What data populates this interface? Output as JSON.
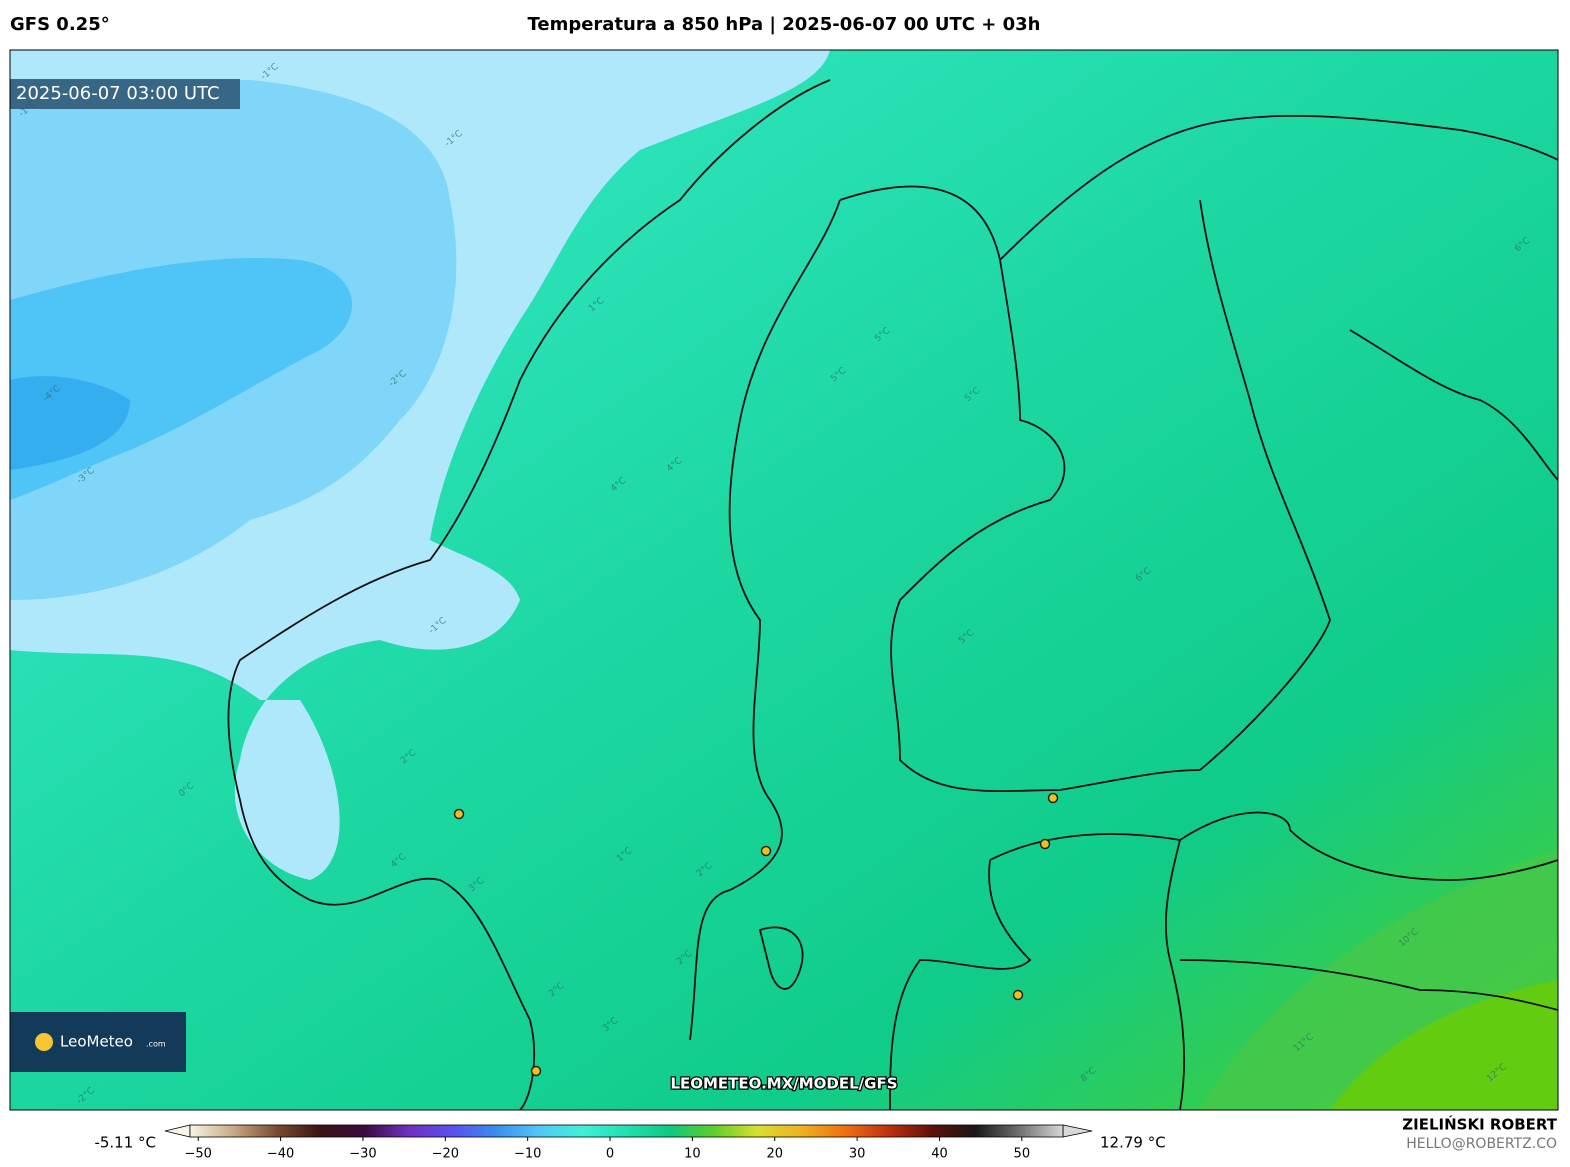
{
  "header": {
    "model": "GFS 0.25°",
    "title": "Temperatura a 850 hPa | 2025-06-07 00 UTC + 03h"
  },
  "map": {
    "valid_time": "2025-06-07 03:00 UTC",
    "watermark": "LEOMETEO.MX/MODEL/GFS",
    "logo": {
      "brand": "LeoMeteo",
      "suffix": ".com"
    },
    "contour_labels": [
      "-1°C",
      "-1°C",
      "-2°C",
      "-3°C",
      "-4°C",
      "-1°C",
      "0°C",
      "1°C",
      "2°C",
      "1°C",
      "2°C",
      "3°C",
      "4°C",
      "4°C",
      "5°C",
      "5°C",
      "6°C",
      "5°C",
      "5°C",
      "6°C",
      "2°C",
      "3°C",
      "10°C",
      "11°C",
      "12°C",
      "-2°C",
      "-1°C",
      "8°C",
      "2°C",
      "4°C"
    ]
  },
  "colorbar": {
    "min_label": "-5.11 °C",
    "max_label": "12.79 °C",
    "lim": [
      -51,
      55
    ],
    "ticks": [
      {
        "value": -50,
        "label": "−50"
      },
      {
        "value": -40,
        "label": "−40"
      },
      {
        "value": -30,
        "label": "−30"
      },
      {
        "value": -20,
        "label": "−20"
      },
      {
        "value": -10,
        "label": "−10"
      },
      0,
      10,
      20,
      30,
      40,
      50
    ],
    "colors": [
      "#f8f4e6",
      "#c8a882",
      "#7a4a30",
      "#3a1212",
      "#3a0a40",
      "#7030c0",
      "#5a50f0",
      "#3a8cf0",
      "#50c8f8",
      "#40f0d8",
      "#20e0b0",
      "#10c880",
      "#5ccf28",
      "#d8e030",
      "#f0b020",
      "#f07010",
      "#c03010",
      "#601008",
      "#181818",
      "#707070",
      "#d8d8d8"
    ]
  },
  "footer": {
    "author": "ZIELIŃSKI ROBERT",
    "email": "HELLO@ROBERTZ.CO"
  }
}
